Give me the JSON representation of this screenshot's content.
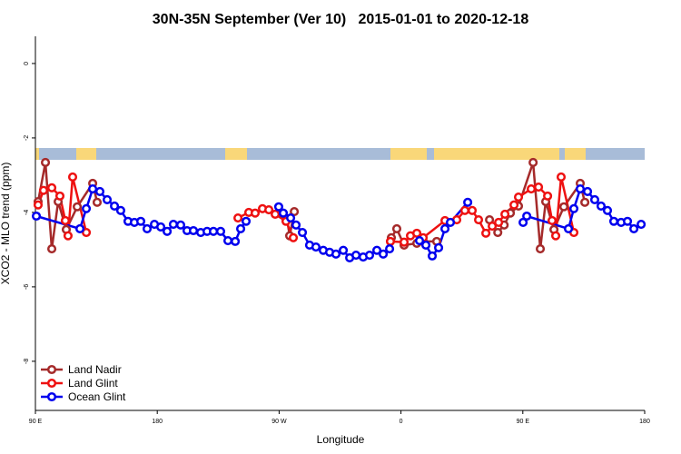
{
  "chart_data": {
    "type": "line",
    "title": "30N-35N September (Ver 10)   2015-01-01 to 2020-12-18",
    "x_label": "Longitude",
    "y_label": "XCO2 - MLO trend (ppm)",
    "xlim": [
      90,
      540
    ],
    "xticks": [
      {
        "value": 90,
        "label": "90 E"
      },
      180,
      {
        "value": 270,
        "label": "90 W"
      },
      {
        "value": 360,
        "label": "0"
      },
      {
        "value": 450,
        "label": "90 E"
      },
      {
        "value": 540,
        "label": "180"
      }
    ],
    "ylim": [
      -9.32,
      0.73
    ],
    "yticks": [
      0,
      -2,
      -4,
      -6,
      -8
    ],
    "legend": "bottom-left",
    "series": [
      {
        "name": "Land Nadir",
        "color": "#a52a2a",
        "x": [
          92.0,
          97.4,
          102.1,
          106.8,
          112.8,
          120.9,
          132.3,
          135.6,
          null,
          271.8,
          275.8,
          277.8,
          281.2,
          null,
          352.9,
          356.9,
          362.3,
          371.7,
          376.4,
          386.4,
          null,
          425.4,
          431.5,
          436.2,
          440.8,
          446.8,
          457.6,
          462.9,
          466.9,
          473.0,
          480.3,
          492.4,
          495.8
        ],
        "values": [
          -3.71,
          -2.66,
          -4.98,
          -3.71,
          -4.46,
          -3.85,
          -3.22,
          -3.73,
          null,
          -4.02,
          -4.17,
          -4.63,
          -3.98,
          null,
          -4.68,
          -4.44,
          -4.88,
          -4.83,
          -4.78,
          -4.78,
          null,
          -4.2,
          -4.54,
          -4.34,
          -4.02,
          -3.83,
          -2.66,
          -4.98,
          -3.71,
          -4.46,
          -3.85,
          -3.22,
          -3.73
        ]
      },
      {
        "name": "Land Glint",
        "color": "#ee1111",
        "x": [
          92.0,
          96.0,
          102.1,
          108.1,
          112.1,
          114.1,
          117.5,
          127.6,
          null,
          239.6,
          247.6,
          252.3,
          257.7,
          262.4,
          267.1,
          275.1,
          280.5,
          null,
          352.2,
          362.3,
          367.0,
          371.7,
          376.4,
          392.5,
          401.2,
          407.2,
          412.6,
          417.3,
          422.7,
          427.4,
          432.1,
          436.8,
          443.5,
          446.8,
          456.2,
          461.6,
          468.3,
          471.6,
          474.3,
          478.3,
          487.7
        ],
        "values": [
          -3.8,
          -3.41,
          -3.34,
          -3.56,
          -4.22,
          -4.63,
          -3.05,
          -4.54,
          null,
          -4.15,
          -4.0,
          -4.02,
          -3.9,
          -3.93,
          -4.05,
          -4.24,
          -4.68,
          null,
          -4.78,
          -4.8,
          -4.63,
          -4.56,
          -4.68,
          -4.22,
          -4.2,
          -3.95,
          -3.95,
          -4.2,
          -4.56,
          -4.37,
          -4.27,
          -4.05,
          -3.8,
          -3.59,
          -3.37,
          -3.32,
          -3.56,
          -4.22,
          -4.63,
          -3.05,
          -4.54
        ]
      },
      {
        "name": "Ocean Glint",
        "color": "#0000ee",
        "x": [
          90.7,
          122.9,
          127.6,
          132.3,
          137.6,
          143.0,
          148.4,
          153.0,
          158.4,
          163.1,
          167.8,
          172.5,
          177.9,
          182.6,
          187.3,
          191.9,
          197.3,
          202.0,
          206.7,
          212.1,
          216.8,
          221.5,
          226.8,
          232.2,
          237.6,
          241.6,
          245.6,
          null,
          269.7,
          273.1,
          278.5,
          282.5,
          287.2,
          292.5,
          297.2,
          302.6,
          307.3,
          312.0,
          317.4,
          322.1,
          326.8,
          332.1,
          336.8,
          342.2,
          346.9,
          351.6,
          null,
          373.7,
          378.4,
          383.1,
          387.8,
          392.5,
          396.5,
          409.3,
          null,
          450.2,
          452.9,
          483.7,
          487.7,
          492.4,
          497.8,
          503.1,
          507.8,
          512.5,
          517.2,
          522.6,
          527.3,
          532.0,
          537.4
        ],
        "values": [
          -4.1,
          -4.44,
          -3.9,
          -3.37,
          -3.44,
          -3.66,
          -3.83,
          -3.95,
          -4.24,
          -4.27,
          -4.24,
          -4.44,
          -4.32,
          -4.39,
          -4.51,
          -4.32,
          -4.34,
          -4.49,
          -4.49,
          -4.54,
          -4.51,
          -4.51,
          -4.51,
          -4.76,
          -4.78,
          -4.44,
          -4.24,
          null,
          -3.85,
          -4.02,
          -4.15,
          -4.34,
          -4.54,
          -4.88,
          -4.93,
          -5.02,
          -5.07,
          -5.12,
          -5.02,
          -5.22,
          -5.15,
          -5.2,
          -5.15,
          -5.02,
          -5.12,
          -4.98,
          null,
          -4.76,
          -4.88,
          -5.17,
          -4.95,
          -4.44,
          -4.27,
          -3.73,
          null,
          -4.27,
          -4.1,
          -4.44,
          -3.9,
          -3.37,
          -3.44,
          -3.66,
          -3.83,
          -3.95,
          -4.24,
          -4.27,
          -4.24,
          -4.44,
          -4.32
        ]
      }
    ]
  }
}
